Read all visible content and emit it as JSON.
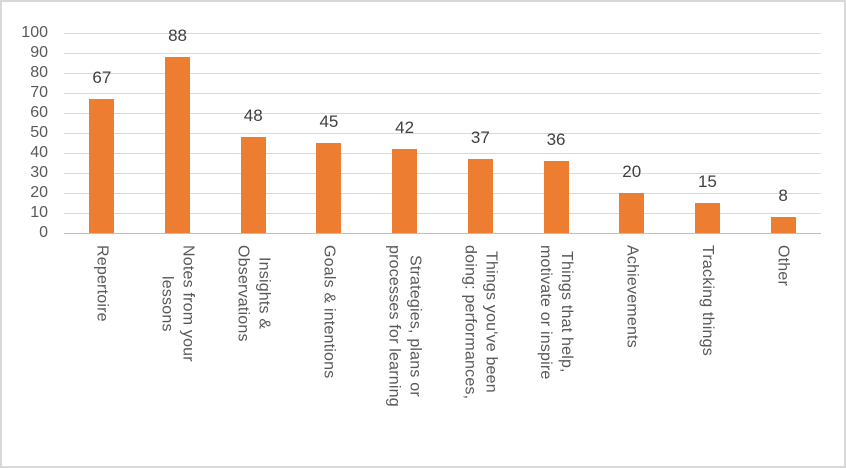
{
  "chart_data": {
    "type": "bar",
    "title": "",
    "xlabel": "",
    "ylabel": "",
    "categories": [
      "Repertoire",
      "Notes from your\nlessons",
      "Insights &\nObservations",
      "Goals & intentions",
      "Strategies, plans or\nprocesses for learning",
      "Things you've been\ndoing: performances,",
      "Things that help,\nmotivate or inspire",
      "Achievements",
      "Tracking things",
      "Other"
    ],
    "values": [
      67,
      88,
      48,
      45,
      42,
      37,
      36,
      20,
      15,
      8
    ],
    "ylim": [
      0,
      100
    ],
    "yticks": [
      0,
      10,
      20,
      30,
      40,
      50,
      60,
      70,
      80,
      90,
      100
    ],
    "grid": "horizontal",
    "legend": "none",
    "data_labels": "outside-end",
    "category_label_rotation": "rotate-text-down",
    "colors": {
      "bar": "#ED7D31",
      "gridline": "#D9D9D9",
      "axis_line": "#BFBFBF",
      "tick_label": "#595959",
      "data_label": "#404040",
      "chart_border": "#D8D8D8",
      "background": "#FFFFFF"
    }
  }
}
